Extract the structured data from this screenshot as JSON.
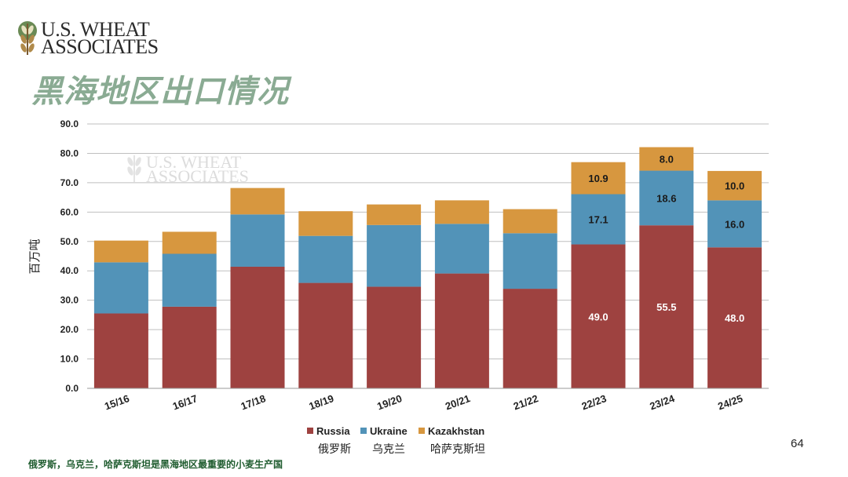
{
  "header": {
    "logo_line1": "U.S. WHEAT",
    "logo_line2": "ASSOCIATES",
    "title": "黑海地区出口情况"
  },
  "watermark": {
    "line1": "U.S. WHEAT",
    "line2": "ASSOCIATES"
  },
  "page_number": "64",
  "footnote": "俄罗斯，乌克兰，哈萨克斯坦是黑海地区最重要的小麦生产国",
  "colors": {
    "russia": "#9e4240",
    "ukraine": "#5293b8",
    "kazakhstan": "#d7973f",
    "title": "#8aab93",
    "grid": "#bfbfbf"
  },
  "chart_data": {
    "type": "bar",
    "stacked": true,
    "title": "",
    "xlabel": "",
    "ylabel": "百万吨",
    "ylim": [
      0,
      90
    ],
    "ytick_step": 10,
    "ytick_labels": [
      "0.0",
      "10.0",
      "20.0",
      "30.0",
      "40.0",
      "50.0",
      "60.0",
      "70.0",
      "80.0",
      "90.0"
    ],
    "grid": true,
    "legend_position": "bottom",
    "categories": [
      "15/16",
      "16/17",
      "17/18",
      "18/19",
      "19/20",
      "20/21",
      "21/22",
      "22/23",
      "23/24",
      "24/25"
    ],
    "series": [
      {
        "name": "Russia",
        "name_cn": "俄罗斯",
        "color": "#9e4240",
        "values": [
          25.5,
          27.8,
          41.4,
          35.9,
          34.6,
          39.1,
          33.9,
          49.0,
          55.5,
          48.0
        ],
        "labels": [
          "",
          "",
          "",
          "",
          "",
          "",
          "",
          "49.0",
          "55.5",
          "48.0"
        ]
      },
      {
        "name": "Ukraine",
        "name_cn": "乌克兰",
        "color": "#5293b8",
        "values": [
          17.4,
          18.0,
          17.8,
          16.0,
          21.0,
          16.9,
          18.9,
          17.1,
          18.6,
          16.0
        ],
        "labels": [
          "",
          "",
          "",
          "",
          "",
          "",
          "",
          "17.1",
          "18.6",
          "16.0"
        ]
      },
      {
        "name": "Kazakhstan",
        "name_cn": "哈萨克斯坦",
        "color": "#d7973f",
        "values": [
          7.4,
          7.5,
          9.0,
          8.4,
          7.0,
          8.0,
          8.2,
          10.9,
          8.0,
          10.0
        ],
        "labels": [
          "",
          "",
          "",
          "",
          "",
          "",
          "",
          "10.9",
          "8.0",
          "10.0"
        ]
      }
    ]
  }
}
